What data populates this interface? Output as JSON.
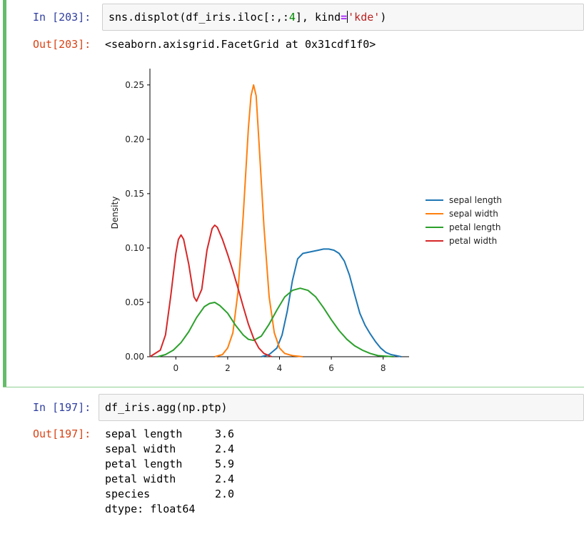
{
  "cells": [
    {
      "in_prompt": "In [203]:",
      "code": {
        "prefix": "sns.displot(df_iris.iloc[:,:",
        "num": "4",
        "mid": "], kind",
        "op": "=",
        "str": "'kde'",
        "suffix": ")"
      },
      "out_prompt": "Out[203]:",
      "out_text": "<seaborn.axisgrid.FacetGrid at 0x31cdf1f0>"
    },
    {
      "in_prompt": "In [197]:",
      "code": "df_iris.agg(np.ptp)",
      "out_prompt": "Out[197]:",
      "rows": [
        {
          "label": "sepal length",
          "value": "3.6"
        },
        {
          "label": "sepal width",
          "value": "2.4"
        },
        {
          "label": "petal length",
          "value": "5.9"
        },
        {
          "label": "petal width",
          "value": "2.4"
        },
        {
          "label": "species",
          "value": "2.0"
        }
      ],
      "dtype": "dtype: float64"
    }
  ],
  "chart_data": {
    "type": "line",
    "ylabel": "Density",
    "xlabel": "",
    "xlim": [
      -1,
      9
    ],
    "ylim": [
      0,
      0.265
    ],
    "xticks": [
      0,
      2,
      4,
      6,
      8
    ],
    "yticks": [
      0.0,
      0.05,
      0.1,
      0.15,
      0.2,
      0.25
    ],
    "ytick_labels": [
      "0.00",
      "0.05",
      "0.10",
      "0.15",
      "0.20",
      "0.25"
    ],
    "legend_position": "right",
    "series": [
      {
        "name": "sepal length",
        "color": "#1f77b4",
        "x": [
          3.3,
          3.6,
          3.9,
          4.1,
          4.3,
          4.5,
          4.7,
          4.9,
          5.1,
          5.3,
          5.5,
          5.7,
          5.9,
          6.1,
          6.3,
          6.5,
          6.7,
          6.9,
          7.1,
          7.3,
          7.5,
          7.7,
          7.9,
          8.1,
          8.3,
          8.5,
          8.7
        ],
        "y": [
          0.0,
          0.002,
          0.008,
          0.02,
          0.042,
          0.07,
          0.09,
          0.095,
          0.096,
          0.097,
          0.098,
          0.099,
          0.099,
          0.098,
          0.095,
          0.088,
          0.075,
          0.057,
          0.04,
          0.029,
          0.021,
          0.014,
          0.008,
          0.004,
          0.002,
          0.001,
          0.0
        ]
      },
      {
        "name": "sepal width",
        "color": "#ff7f0e",
        "x": [
          1.5,
          1.8,
          2.0,
          2.2,
          2.4,
          2.6,
          2.8,
          2.9,
          3.0,
          3.1,
          3.2,
          3.4,
          3.6,
          3.8,
          4.0,
          4.2,
          4.5,
          4.9
        ],
        "y": [
          0.0,
          0.002,
          0.008,
          0.022,
          0.06,
          0.13,
          0.21,
          0.24,
          0.25,
          0.24,
          0.2,
          0.12,
          0.055,
          0.022,
          0.008,
          0.003,
          0.001,
          0.0
        ]
      },
      {
        "name": "petal length",
        "color": "#2ca02c",
        "x": [
          -0.7,
          -0.4,
          -0.1,
          0.2,
          0.5,
          0.8,
          1.1,
          1.3,
          1.5,
          1.7,
          2.0,
          2.3,
          2.6,
          2.8,
          3.0,
          3.3,
          3.6,
          3.9,
          4.2,
          4.5,
          4.8,
          5.1,
          5.4,
          5.7,
          6.0,
          6.3,
          6.6,
          6.9,
          7.2,
          7.5,
          7.8,
          8.1,
          8.4
        ],
        "y": [
          0.0,
          0.002,
          0.006,
          0.013,
          0.023,
          0.036,
          0.046,
          0.049,
          0.05,
          0.047,
          0.04,
          0.029,
          0.02,
          0.016,
          0.015,
          0.019,
          0.03,
          0.043,
          0.055,
          0.061,
          0.063,
          0.061,
          0.055,
          0.045,
          0.034,
          0.024,
          0.016,
          0.01,
          0.006,
          0.003,
          0.001,
          0.0005,
          0.0
        ]
      },
      {
        "name": "petal width",
        "color": "#d62728",
        "x": [
          -1.0,
          -0.6,
          -0.4,
          -0.2,
          0.0,
          0.1,
          0.2,
          0.3,
          0.5,
          0.7,
          0.8,
          1.0,
          1.2,
          1.4,
          1.5,
          1.6,
          1.8,
          2.0,
          2.2,
          2.4,
          2.6,
          2.8,
          3.0,
          3.2,
          3.4,
          3.7
        ],
        "y": [
          0.0,
          0.006,
          0.02,
          0.055,
          0.095,
          0.108,
          0.112,
          0.108,
          0.085,
          0.055,
          0.051,
          0.062,
          0.098,
          0.118,
          0.121,
          0.119,
          0.108,
          0.094,
          0.079,
          0.063,
          0.046,
          0.03,
          0.017,
          0.008,
          0.003,
          0.0
        ]
      }
    ]
  }
}
